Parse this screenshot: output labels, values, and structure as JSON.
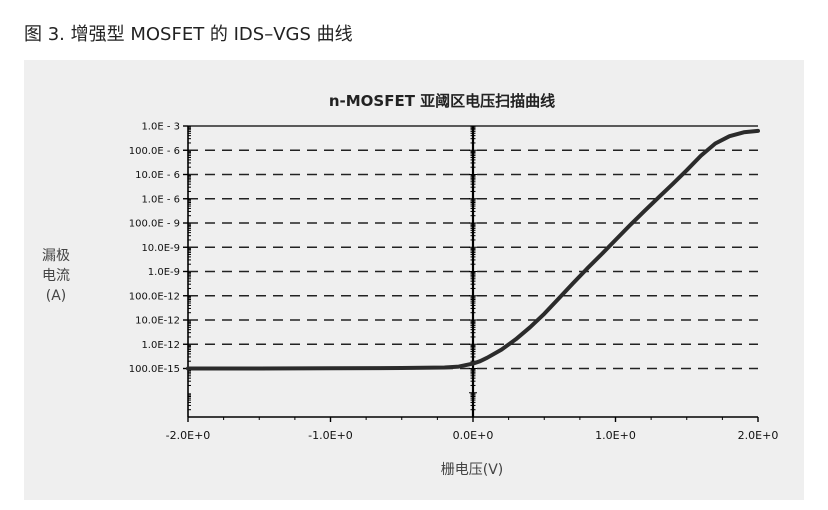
{
  "caption": "图 3. 增强型 MOSFET 的 IDS–VGS 曲线",
  "colors": {
    "panel_background": "#efefef",
    "curve": "#2b2b2b",
    "grid": "#222222",
    "axis": "#000000"
  },
  "chart_data": {
    "type": "line",
    "title": "n-MOSFET 亚阈区电压扫描曲线",
    "xlabel": "栅电压(V)",
    "ylabel_lines": [
      "漏极",
      "电流",
      "(A)"
    ],
    "scale_y": "log",
    "xlim": [
      -2.0,
      2.0
    ],
    "ylim": [
      1e-15,
      0.001
    ],
    "grid": "horizontal dashed at each major tick",
    "x_ticks": [
      {
        "value": -2.0,
        "label": "-2.0E+0"
      },
      {
        "value": -1.0,
        "label": "-1.0E+0"
      },
      {
        "value": 0.0,
        "label": "0.0E+0"
      },
      {
        "value": 1.0,
        "label": "1.0E+0"
      },
      {
        "value": 2.0,
        "label": "2.0E+0"
      }
    ],
    "y_ticks": [
      {
        "value": 0.001,
        "label": "1.0E - 3"
      },
      {
        "value": 0.0001,
        "label": "100.0E - 6"
      },
      {
        "value": 1e-05,
        "label": "10.0E - 6"
      },
      {
        "value": 1e-06,
        "label": "1.0E - 6"
      },
      {
        "value": 1e-07,
        "label": "100.0E - 9"
      },
      {
        "value": 1e-08,
        "label": "10.0E-9"
      },
      {
        "value": 1e-09,
        "label": "1.0E-9"
      },
      {
        "value": 1e-10,
        "label": "100.0E-12"
      },
      {
        "value": 1e-11,
        "label": "10.0E-12"
      },
      {
        "value": 1e-12,
        "label": "1.0E-12"
      },
      {
        "value": 1e-13,
        "label": "100.0E-15"
      }
    ],
    "series": [
      {
        "x": [
          -2.0,
          -1.5,
          -1.0,
          -0.5,
          -0.2,
          -0.1,
          0.0,
          0.05,
          0.1,
          0.2,
          0.3,
          0.4,
          0.5,
          0.6,
          0.7,
          0.8,
          0.9,
          1.0,
          1.1,
          1.2,
          1.3,
          1.4,
          1.5,
          1.6,
          1.7,
          1.8,
          1.9,
          2.0
        ],
        "y": [
          1e-13,
          1e-13,
          1.02e-13,
          1.05e-13,
          1.1e-13,
          1.2e-13,
          1.6e-13,
          2e-13,
          2.8e-13,
          6e-13,
          1.6e-12,
          5e-12,
          1.8e-11,
          7.5e-11,
          3.2e-10,
          1.3e-09,
          5e-09,
          2e-08,
          8e-08,
          3e-07,
          1.1e-06,
          4e-06,
          1.5e-05,
          6e-05,
          0.00019,
          0.00038,
          0.00055,
          0.00063
        ]
      }
    ]
  }
}
